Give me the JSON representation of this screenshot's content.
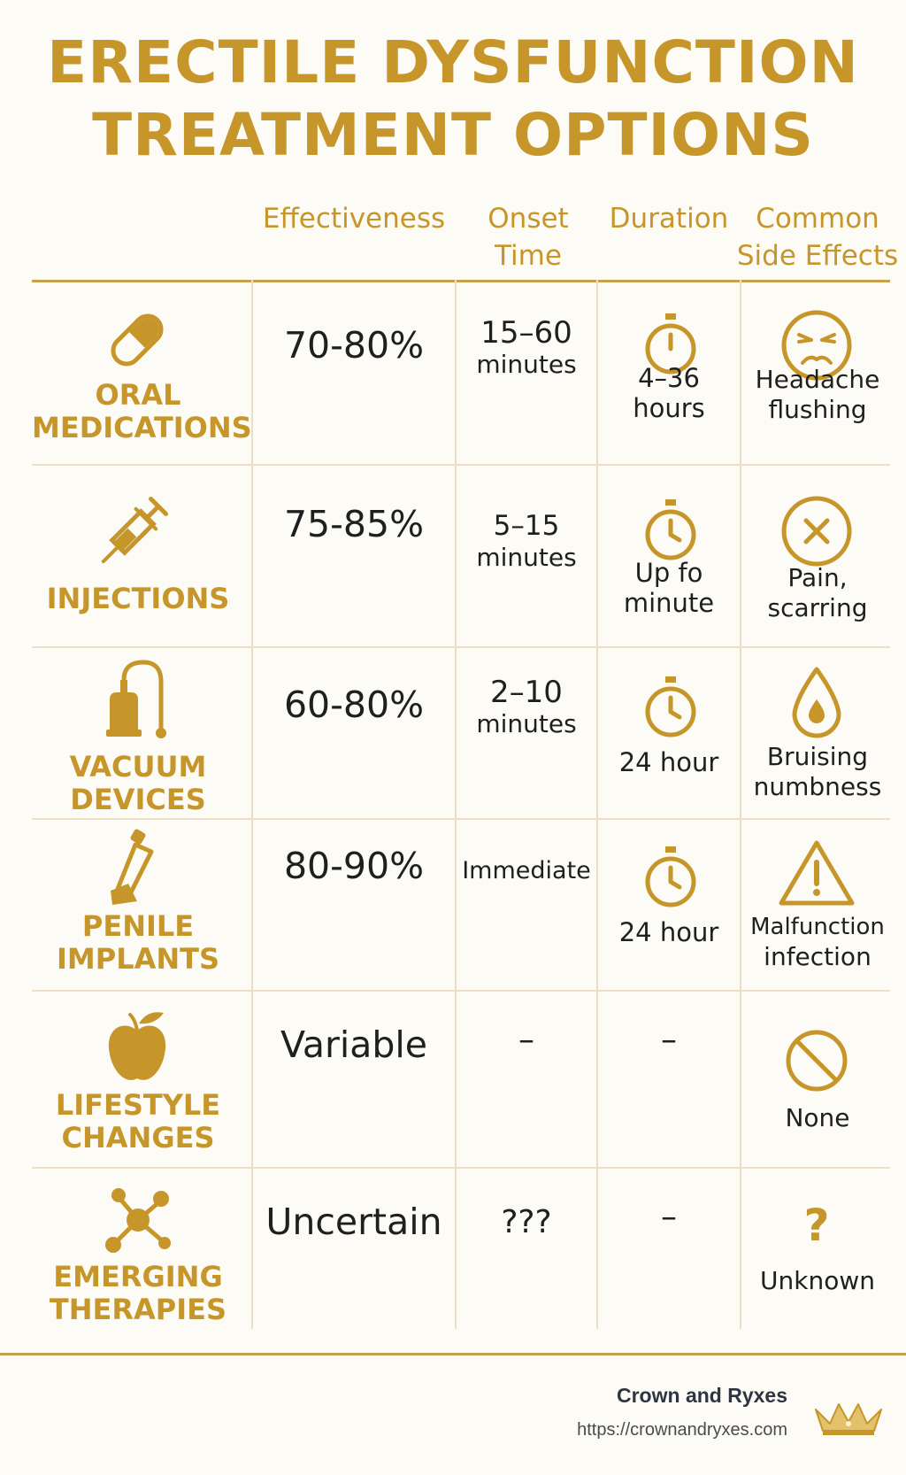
{
  "title": {
    "line1": "ERECTILE DYSFUNCTION",
    "line2": "TREATMENT OPTIONS"
  },
  "headers": {
    "effectiveness": "Effectiveness",
    "onset_line1": "Onset",
    "onset_line2": "Time",
    "duration": "Duration",
    "side_line1": "Common",
    "side_line2": "Side Effects"
  },
  "rows": [
    {
      "icon": "pill-icon",
      "label_line1": "ORAL",
      "label_line2": "MEDICATIONS",
      "effectiveness": "70-80%",
      "onset_line1": "15–60",
      "onset_line2": "minutes",
      "duration_icon": "stopwatch-icon",
      "duration_line1": "4–36",
      "duration_line2": "hours",
      "side_icon": "sad-face-icon",
      "side_line1": "Headache",
      "side_line2": "flushing"
    },
    {
      "icon": "syringe-icon",
      "label_line1": "INJECTIONS",
      "effectiveness": "75-85%",
      "onset_line1": "5–15",
      "onset_line2": "minutes",
      "duration_icon": "stopwatch-icon",
      "duration_line1": "Up fo",
      "duration_line2": "minute",
      "side_icon": "x-circle-icon",
      "side_line1": "Pain,",
      "side_line2": "scarring"
    },
    {
      "icon": "vacuum-device-icon",
      "label_line1": "VACUUM",
      "label_line2": "DEVICES",
      "effectiveness": "60-80%",
      "onset_line1": "2–10",
      "onset_line2": "minutes",
      "duration_icon": "stopwatch-icon",
      "duration_line1": "24 hour",
      "side_icon": "droplet-icon",
      "side_line1": "Bruising",
      "side_line2": "numbness"
    },
    {
      "icon": "implant-icon",
      "label_line1": "PENILE",
      "label_line2": "IMPLANTS",
      "effectiveness": "80-90%",
      "onset_line1": "Immediate",
      "duration_icon": "stopwatch-icon",
      "duration_line1": "24 hour",
      "side_icon": "warning-icon",
      "side_line1": "Malfunction",
      "side_line2": "infection"
    },
    {
      "icon": "apple-icon",
      "label_line1": "LIFESTYLE",
      "label_line2": "CHANGES",
      "effectiveness": "Variable",
      "onset_line1": "–",
      "duration_line1": "–",
      "side_icon": "prohibited-icon",
      "side_line1": "None"
    },
    {
      "icon": "molecule-icon",
      "label_line1": "EMERGING",
      "label_line2": "THERAPIES",
      "effectiveness": "Uncertain",
      "onset_line1": "???",
      "duration_line1": "–",
      "side_icon": "question-icon",
      "side_line1": "Unknown"
    }
  ],
  "footer": {
    "brand": "Crown and Ryxes",
    "url": "https://crownandryxes.com",
    "logo_icon": "crown-icon"
  },
  "colors": {
    "accent": "#c7962a",
    "background": "#fcfbf6",
    "text": "#1f1f1f",
    "rule": "#c9a14a"
  }
}
